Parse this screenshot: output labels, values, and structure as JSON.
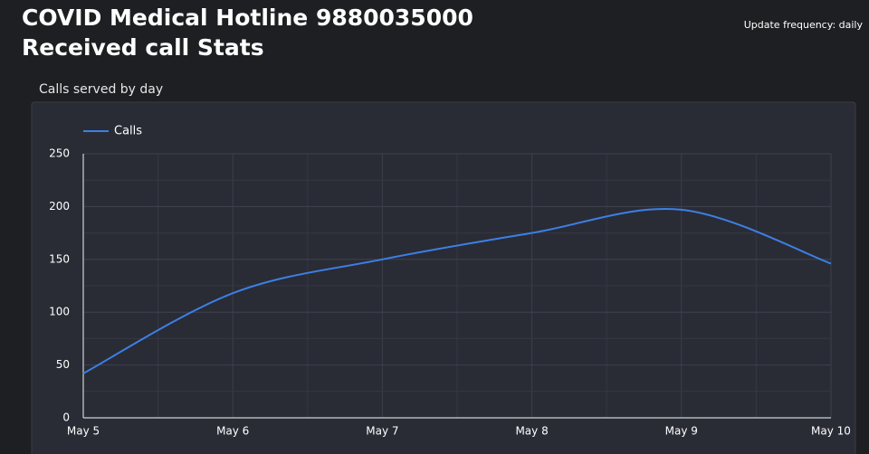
{
  "header": {
    "title_lines": [
      "COVID Medical Hotline 9880035000",
      "Received call Stats"
    ],
    "update_frequency": "Update frequency: daily"
  },
  "chart_data": {
    "type": "line",
    "title": "Calls served by day",
    "categories": [
      "May 5",
      "May 6",
      "May 7",
      "May 8",
      "May 9",
      "May 10"
    ],
    "series": [
      {
        "name": "Calls",
        "color": "#3d7fe6",
        "values": [
          42,
          118,
          150,
          175,
          197,
          146
        ]
      }
    ],
    "ylim": [
      0,
      250
    ],
    "yticks": [
      0,
      50,
      100,
      150,
      200,
      250
    ],
    "minor_yticks": [
      25,
      75,
      125,
      175,
      225
    ],
    "grid": true,
    "legend": "top-left",
    "smooth": true
  }
}
